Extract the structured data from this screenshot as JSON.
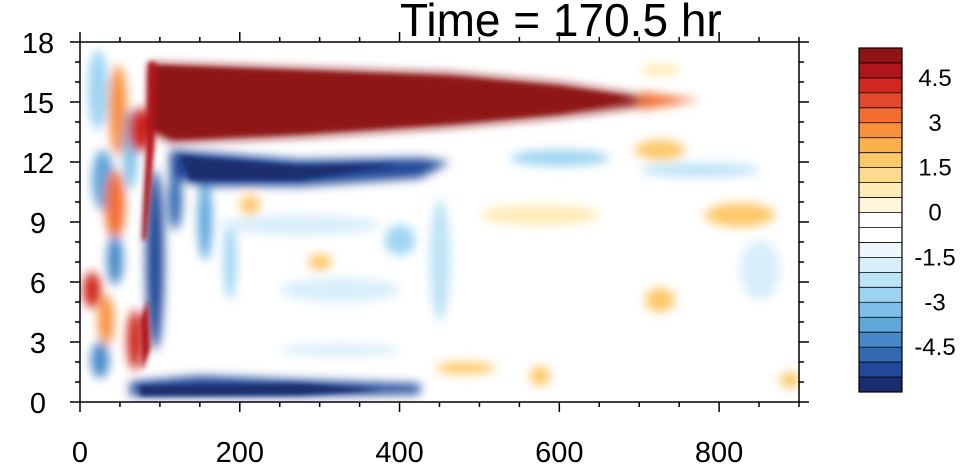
{
  "chart_data": {
    "type": "heatmap",
    "title": "Time = 170.5 hr",
    "xlabel": "",
    "ylabel": "",
    "xlim": [
      0,
      900
    ],
    "ylim": [
      0,
      18
    ],
    "x_ticks": [
      "0",
      "200",
      "400",
      "600",
      "800"
    ],
    "y_ticks": [
      "0",
      "3",
      "6",
      "9",
      "12",
      "15",
      "18"
    ],
    "colorbar": {
      "range": [
        -6,
        6
      ],
      "step": 0.5,
      "labels": [
        "4.5",
        "3",
        "1.5",
        "0",
        "-1.5",
        "-3",
        "-4.5"
      ],
      "colors": [
        "#8f1416",
        "#b1141b",
        "#d0281f",
        "#e4482c",
        "#f26e31",
        "#f8913d",
        "#fbb04d",
        "#fdc86a",
        "#feda8f",
        "#feebb6",
        "#fff6dc",
        "#ffffff",
        "#ffffff",
        "#eef7fc",
        "#d8eefa",
        "#bde3f6",
        "#9dd4f2",
        "#7dbfe9",
        "#5fa6da",
        "#4789c8",
        "#3368b3",
        "#22489a",
        "#1a2d6e"
      ]
    },
    "features": [
      {
        "name": "upper red band",
        "x": [
          85,
          690
        ],
        "y": [
          13.8,
          16.8
        ],
        "value": 6
      },
      {
        "name": "blue band below red",
        "x": [
          100,
          450
        ],
        "y": [
          11.8,
          13.3
        ],
        "value": -4.5
      },
      {
        "name": "near-surface blue band",
        "x": [
          90,
          420
        ],
        "y": [
          0,
          1.0
        ],
        "value": -5
      }
    ]
  }
}
